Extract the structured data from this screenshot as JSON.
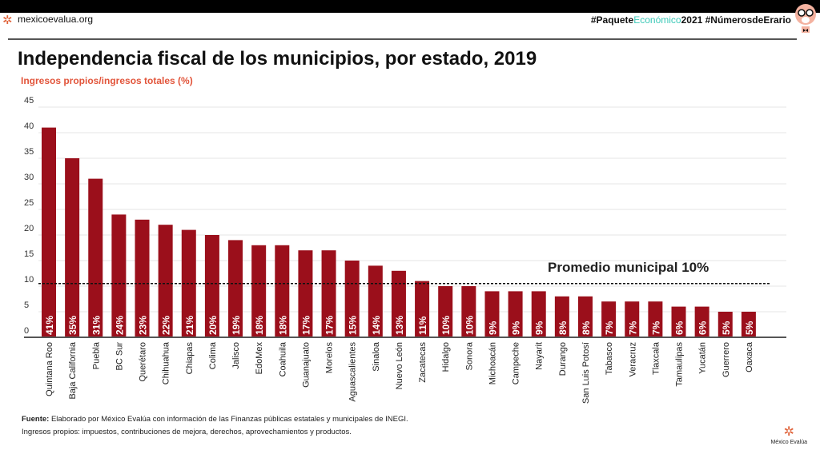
{
  "header": {
    "site": "mexicoevalua.org",
    "hashtag_pre": "#Paquete",
    "hashtag_teal": "Económico",
    "hashtag_post": "2021 #NúmerosdeErario"
  },
  "colors": {
    "bar": "#9b0f1b",
    "accent": "#e2553b",
    "teal": "#3cc9b8"
  },
  "chart_data": {
    "type": "bar",
    "title": "Independencia fiscal de los municipios, por estado, 2019",
    "ylabel": "Ingresos propios/ingresos totales (%)",
    "ylim": [
      0,
      45
    ],
    "yticks": [
      "0",
      "5",
      "10",
      "15",
      "20",
      "25",
      "30",
      "35",
      "40",
      "45"
    ],
    "grid": true,
    "categories": [
      "Quintana Roo",
      "Baja California",
      "Puebla",
      "BC Sur",
      "Querétaro",
      "Chihuahua",
      "Chiapas",
      "Colima",
      "Jalisco",
      "EdoMex",
      "Coahuila",
      "Guanajuato",
      "Morelos",
      "Aguascalientes",
      "Sinaloa",
      "Nuevo León",
      "Zacatecas",
      "Hidalgo",
      "Sonora",
      "Michoacán",
      "Campeche",
      "Nayarit",
      "Durango",
      "San Luis Potosí",
      "Tabasco",
      "Veracruz",
      "Tlaxcala",
      "Tamaulipas",
      "Yucatán",
      "Guerrero",
      "Oaxaca"
    ],
    "values": [
      41,
      35,
      31,
      24,
      23,
      22,
      21,
      20,
      19,
      18,
      18,
      17,
      17,
      15,
      14,
      13,
      11,
      10,
      10,
      9,
      9,
      9,
      8,
      8,
      7,
      7,
      7,
      6,
      6,
      5,
      5
    ],
    "data_labels": [
      "41%",
      "35%",
      "31%",
      "24%",
      "23%",
      "22%",
      "21%",
      "20%",
      "19%",
      "18%",
      "18%",
      "17%",
      "17%",
      "15%",
      "14%",
      "13%",
      "11%",
      "10%",
      "10%",
      "9%",
      "9%",
      "9%",
      "8%",
      "8%",
      "7%",
      "7%",
      "7%",
      "6%",
      "6%",
      "5%",
      "5%"
    ],
    "reference_line": {
      "value": 10.5,
      "label": "Promedio municipal 10%"
    }
  },
  "footer": {
    "source_bold": "Fuente:",
    "source": " Elaborado por México Evalúa con información de las Finanzas públicas estatales y municipales de INEGI.",
    "note": "Ingresos propios: impuestos, contribuciones de mejora, derechos, aprovechamientos y productos.",
    "logo": "México Evalúa"
  }
}
